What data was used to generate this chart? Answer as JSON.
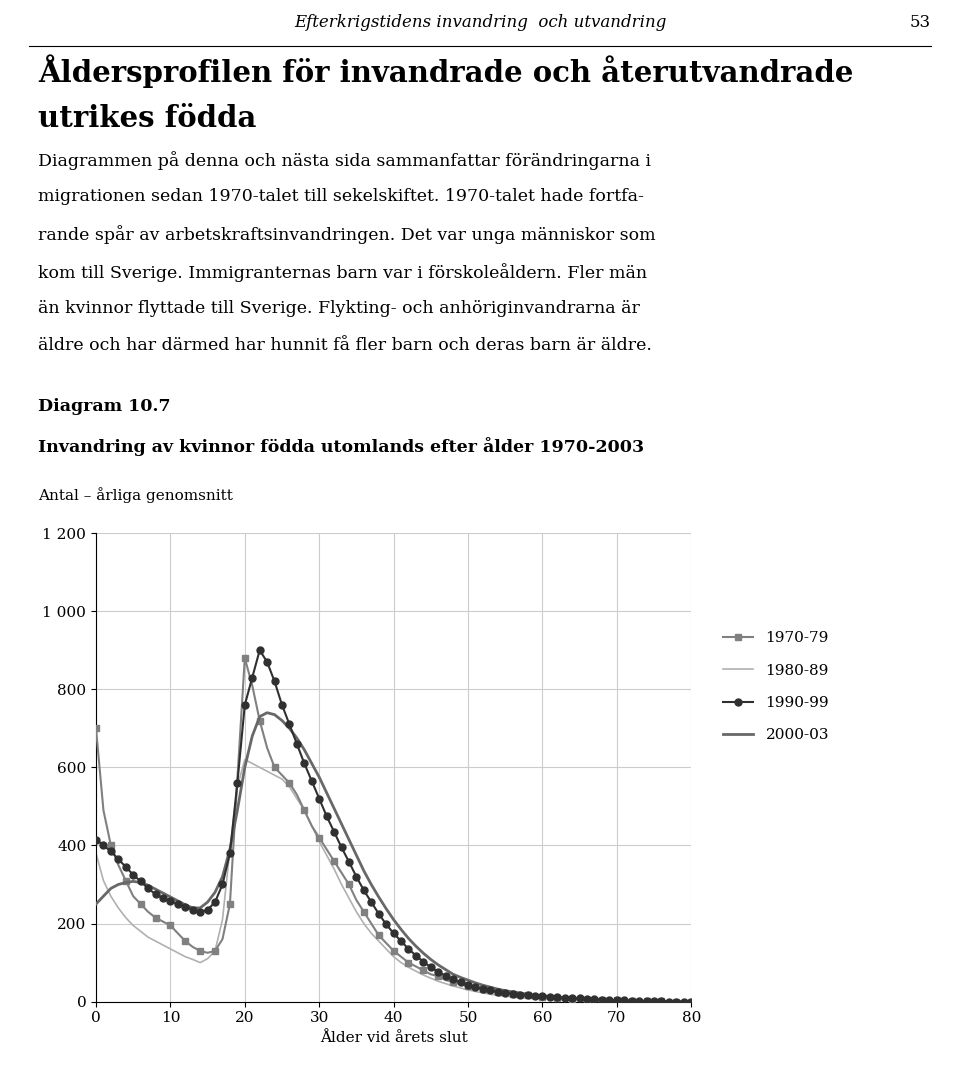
{
  "title_header": "Efterkrigstidens invandring  och utvandring",
  "page_number": "53",
  "main_title_line1": "Åldersprofilen för invandrade och återutvandrade",
  "main_title_line2": "utrikes födda",
  "diagram_label": "Diagram 10.7",
  "chart_title": "Invandring av kvinnor födda utomlands efter ålder 1970-2003",
  "chart_subtitle": "Antal – årliga genomsnitt",
  "xlabel": "Ålder vid årets slut",
  "xlim": [
    0,
    80
  ],
  "ylim": [
    0,
    1200
  ],
  "yticks": [
    0,
    200,
    400,
    600,
    800,
    1000,
    1200
  ],
  "xticks": [
    0,
    10,
    20,
    30,
    40,
    50,
    60,
    70,
    80
  ],
  "legend_labels": [
    "1970-79",
    "1980-89",
    "1990-99",
    "2000-03"
  ],
  "series_1970_79": {
    "ages": [
      0,
      1,
      2,
      3,
      4,
      5,
      6,
      7,
      8,
      9,
      10,
      11,
      12,
      13,
      14,
      15,
      16,
      17,
      18,
      19,
      20,
      21,
      22,
      23,
      24,
      25,
      26,
      27,
      28,
      29,
      30,
      31,
      32,
      33,
      34,
      35,
      36,
      37,
      38,
      39,
      40,
      41,
      42,
      43,
      44,
      45,
      46,
      47,
      48,
      49,
      50,
      51,
      52,
      53,
      54,
      55,
      56,
      57,
      58,
      59,
      60,
      61,
      62,
      63,
      64,
      65,
      66,
      67,
      68,
      69,
      70,
      71,
      72,
      73,
      74,
      75,
      76,
      77,
      78,
      79,
      80
    ],
    "values": [
      700,
      490,
      400,
      350,
      310,
      270,
      250,
      230,
      215,
      205,
      195,
      175,
      155,
      140,
      130,
      125,
      130,
      160,
      250,
      570,
      880,
      810,
      720,
      650,
      600,
      580,
      560,
      530,
      490,
      450,
      420,
      390,
      360,
      330,
      300,
      260,
      230,
      200,
      170,
      150,
      130,
      115,
      100,
      90,
      80,
      70,
      65,
      55,
      50,
      45,
      40,
      35,
      32,
      28,
      25,
      22,
      20,
      18,
      16,
      14,
      12,
      10,
      9,
      8,
      7,
      6,
      5,
      4,
      4,
      3,
      3,
      2,
      2,
      2,
      1,
      1,
      1,
      1,
      0,
      0,
      0
    ],
    "color": "#808080",
    "marker": "s",
    "linewidth": 1.5,
    "markersize": 5,
    "markevery": 2
  },
  "series_1980_89": {
    "ages": [
      0,
      1,
      2,
      3,
      4,
      5,
      6,
      7,
      8,
      9,
      10,
      11,
      12,
      13,
      14,
      15,
      16,
      17,
      18,
      19,
      20,
      21,
      22,
      23,
      24,
      25,
      26,
      27,
      28,
      29,
      30,
      31,
      32,
      33,
      34,
      35,
      36,
      37,
      38,
      39,
      40,
      41,
      42,
      43,
      44,
      45,
      46,
      47,
      48,
      49,
      50,
      51,
      52,
      53,
      54,
      55,
      56,
      57,
      58,
      59,
      60,
      61,
      62,
      63,
      64,
      65,
      66,
      67,
      68,
      69,
      70,
      71,
      72,
      73,
      74,
      75,
      76,
      77,
      78,
      79,
      80
    ],
    "values": [
      380,
      310,
      270,
      240,
      215,
      195,
      180,
      165,
      155,
      145,
      135,
      125,
      115,
      108,
      100,
      110,
      130,
      210,
      390,
      550,
      620,
      610,
      600,
      590,
      580,
      570,
      550,
      520,
      490,
      450,
      410,
      375,
      340,
      300,
      265,
      230,
      200,
      175,
      155,
      135,
      115,
      100,
      88,
      78,
      68,
      60,
      52,
      46,
      40,
      35,
      30,
      26,
      22,
      19,
      16,
      14,
      12,
      10,
      9,
      8,
      7,
      6,
      5,
      4,
      3,
      3,
      2,
      2,
      2,
      1,
      1,
      1,
      1,
      0,
      0,
      0,
      0,
      0,
      0,
      0,
      0
    ],
    "color": "#b0b0b0",
    "marker": "",
    "linewidth": 1.2,
    "markersize": 0,
    "markevery": 1
  },
  "series_1990_99": {
    "ages": [
      0,
      1,
      2,
      3,
      4,
      5,
      6,
      7,
      8,
      9,
      10,
      11,
      12,
      13,
      14,
      15,
      16,
      17,
      18,
      19,
      20,
      21,
      22,
      23,
      24,
      25,
      26,
      27,
      28,
      29,
      30,
      31,
      32,
      33,
      34,
      35,
      36,
      37,
      38,
      39,
      40,
      41,
      42,
      43,
      44,
      45,
      46,
      47,
      48,
      49,
      50,
      51,
      52,
      53,
      54,
      55,
      56,
      57,
      58,
      59,
      60,
      61,
      62,
      63,
      64,
      65,
      66,
      67,
      68,
      69,
      70,
      71,
      72,
      73,
      74,
      75,
      76,
      77,
      78,
      79,
      80
    ],
    "values": [
      415,
      400,
      385,
      365,
      345,
      325,
      308,
      290,
      275,
      265,
      258,
      250,
      243,
      235,
      230,
      235,
      255,
      300,
      380,
      560,
      760,
      830,
      900,
      870,
      820,
      760,
      710,
      660,
      610,
      565,
      520,
      475,
      435,
      395,
      358,
      320,
      285,
      255,
      225,
      198,
      175,
      155,
      135,
      118,
      102,
      88,
      76,
      66,
      57,
      49,
      43,
      38,
      33,
      29,
      25,
      22,
      20,
      18,
      16,
      15,
      14,
      13,
      11,
      10,
      9,
      8,
      7,
      6,
      5,
      4,
      3,
      3,
      2,
      2,
      1,
      1,
      1,
      0,
      0,
      0,
      0
    ],
    "color": "#303030",
    "marker": "o",
    "linewidth": 1.5,
    "markersize": 5,
    "markevery": 1
  },
  "series_2000_03": {
    "ages": [
      0,
      1,
      2,
      3,
      4,
      5,
      6,
      7,
      8,
      9,
      10,
      11,
      12,
      13,
      14,
      15,
      16,
      17,
      18,
      19,
      20,
      21,
      22,
      23,
      24,
      25,
      26,
      27,
      28,
      29,
      30,
      31,
      32,
      33,
      34,
      35,
      36,
      37,
      38,
      39,
      40,
      41,
      42,
      43,
      44,
      45,
      46,
      47,
      48,
      49,
      50,
      51,
      52,
      53,
      54,
      55,
      56,
      57,
      58,
      59,
      60,
      61,
      62,
      63,
      64,
      65,
      66,
      67,
      68,
      69,
      70,
      71,
      72,
      73,
      74,
      75,
      76,
      77,
      78,
      79,
      80
    ],
    "values": [
      250,
      270,
      290,
      300,
      305,
      308,
      305,
      298,
      288,
      278,
      268,
      258,
      248,
      240,
      240,
      255,
      280,
      320,
      390,
      490,
      600,
      680,
      730,
      740,
      735,
      720,
      700,
      675,
      645,
      610,
      575,
      535,
      495,
      455,
      415,
      375,
      335,
      300,
      268,
      238,
      210,
      185,
      162,
      142,
      124,
      108,
      94,
      82,
      70,
      62,
      55,
      48,
      42,
      37,
      32,
      28,
      25,
      22,
      19,
      17,
      15,
      13,
      11,
      10,
      9,
      8,
      7,
      6,
      5,
      4,
      3,
      3,
      2,
      2,
      1,
      1,
      1,
      0,
      0,
      0,
      0
    ],
    "color": "#686868",
    "marker": "",
    "linewidth": 2.0,
    "markersize": 0,
    "markevery": 1
  },
  "background_color": "#ffffff",
  "grid_color": "#cccccc",
  "text_color": "#000000"
}
